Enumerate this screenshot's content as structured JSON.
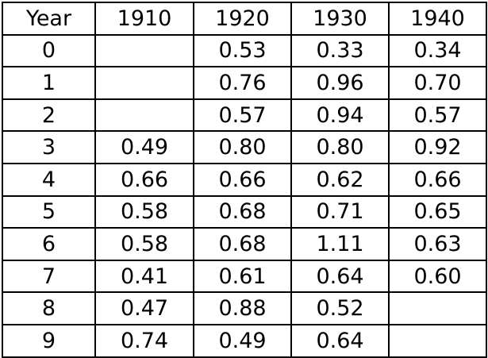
{
  "table": {
    "headers": [
      "Year",
      "1910",
      "1920",
      "1930",
      "1940"
    ],
    "rows": [
      [
        "0",
        "",
        "0.53",
        "0.33",
        "0.34"
      ],
      [
        "1",
        "",
        "0.76",
        "0.96",
        "0.70"
      ],
      [
        "2",
        "",
        "0.57",
        "0.94",
        "0.57"
      ],
      [
        "3",
        "0.49",
        "0.80",
        "0.80",
        "0.92"
      ],
      [
        "4",
        "0.66",
        "0.66",
        "0.62",
        "0.66"
      ],
      [
        "5",
        "0.58",
        "0.68",
        "0.71",
        "0.65"
      ],
      [
        "6",
        "0.58",
        "0.68",
        "1.11",
        "0.63"
      ],
      [
        "7",
        "0.41",
        "0.61",
        "0.64",
        "0.60"
      ],
      [
        "8",
        "0.47",
        "0.88",
        "0.52",
        ""
      ],
      [
        "9",
        "0.74",
        "0.49",
        "0.64",
        ""
      ]
    ]
  }
}
